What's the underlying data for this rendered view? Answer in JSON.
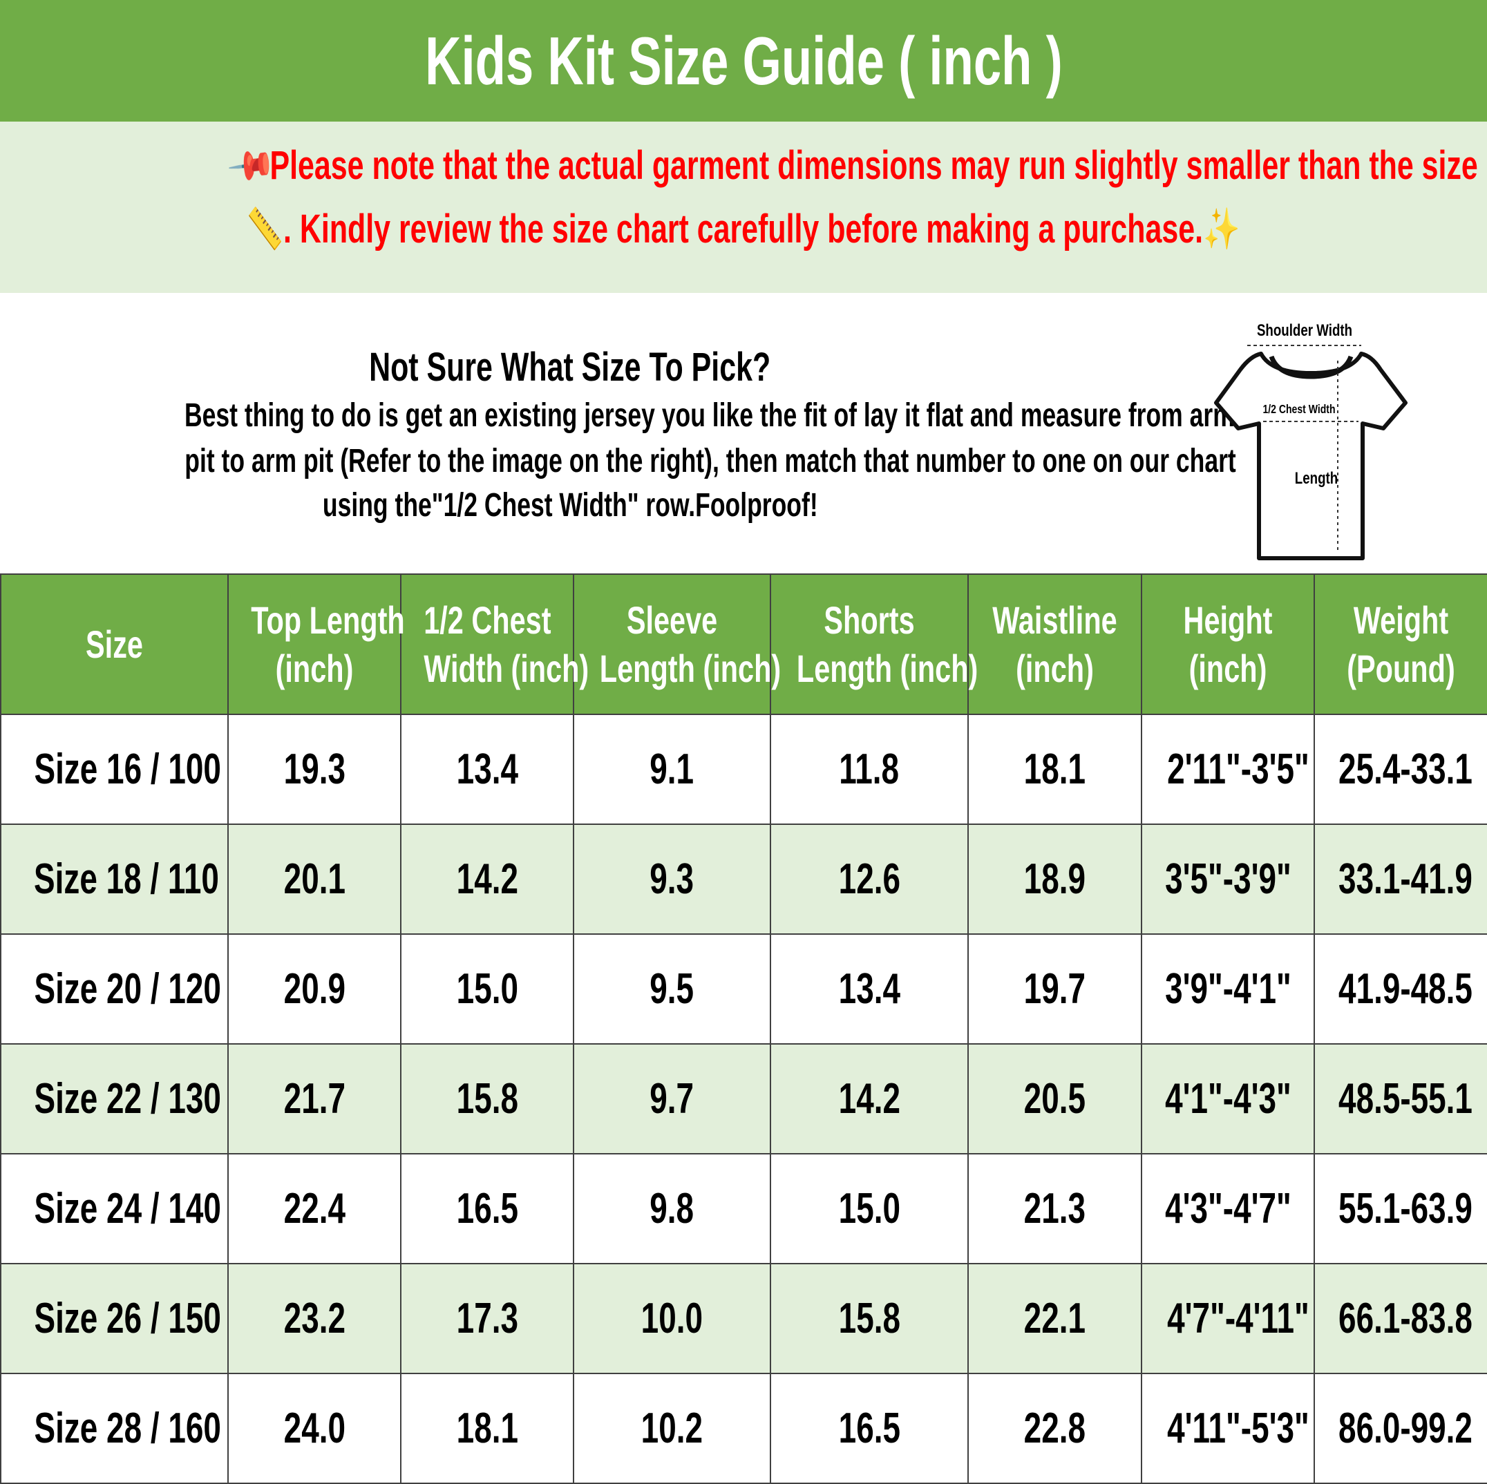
{
  "title": "Kids Kit Size Guide ( inch )",
  "note": {
    "line1": "Please note that the actual garment dimensions may run slightly smaller than the size chart",
    "line2": ". Kindly review the size chart carefully before making a purchase.",
    "icons": [
      "pushpin-icon",
      "ruler-icon",
      "sparkles-icon"
    ],
    "color": "#ff0000"
  },
  "info": {
    "heading": "Not Sure What Size To Pick?",
    "line1": "Best thing to do is get an existing jersey you like the fit of lay it flat and measure from arm",
    "line2": "pit to arm pit (Refer to the image on the right), then match that number to one on our chart",
    "line3": "using the\"1/2 Chest Width\" row.Foolproof!",
    "diagram": {
      "shoulder": "Shoulder Width",
      "chest": "1/2 Chest Width",
      "length": "Length"
    }
  },
  "colors": {
    "header_green": "#70ad47",
    "light_green": "#e2efda"
  },
  "table": {
    "headers": [
      [
        "Size"
      ],
      [
        "Top Length",
        "(inch)"
      ],
      [
        "1/2 Chest",
        "Width (inch)"
      ],
      [
        "Sleeve",
        "Length (inch)"
      ],
      [
        "Shorts",
        "Length (inch)"
      ],
      [
        "Waistline",
        "(inch)"
      ],
      [
        "Height",
        "(inch)"
      ],
      [
        "Weight",
        "(Pound)"
      ]
    ],
    "rows": [
      [
        "Size 16 / 100",
        "19.3",
        "13.4",
        "9.1",
        "11.8",
        "18.1",
        "2'11\"-3'5\"",
        "25.4-33.1"
      ],
      [
        "Size 18 / 110",
        "20.1",
        "14.2",
        "9.3",
        "12.6",
        "18.9",
        "3'5\"-3'9\"",
        "33.1-41.9"
      ],
      [
        "Size 20 / 120",
        "20.9",
        "15.0",
        "9.5",
        "13.4",
        "19.7",
        "3'9\"-4'1\"",
        "41.9-48.5"
      ],
      [
        "Size 22 / 130",
        "21.7",
        "15.8",
        "9.7",
        "14.2",
        "20.5",
        "4'1\"-4'3\"",
        "48.5-55.1"
      ],
      [
        "Size 24 / 140",
        "22.4",
        "16.5",
        "9.8",
        "15.0",
        "21.3",
        "4'3\"-4'7\"",
        "55.1-63.9"
      ],
      [
        "Size 26 / 150",
        "23.2",
        "17.3",
        "10.0",
        "15.8",
        "22.1",
        "4'7\"-4'11\"",
        "66.1-83.8"
      ],
      [
        "Size 28 / 160",
        "24.0",
        "18.1",
        "10.2",
        "16.5",
        "22.8",
        "4'11\"-5'3\"",
        "86.0-99.2"
      ]
    ]
  }
}
